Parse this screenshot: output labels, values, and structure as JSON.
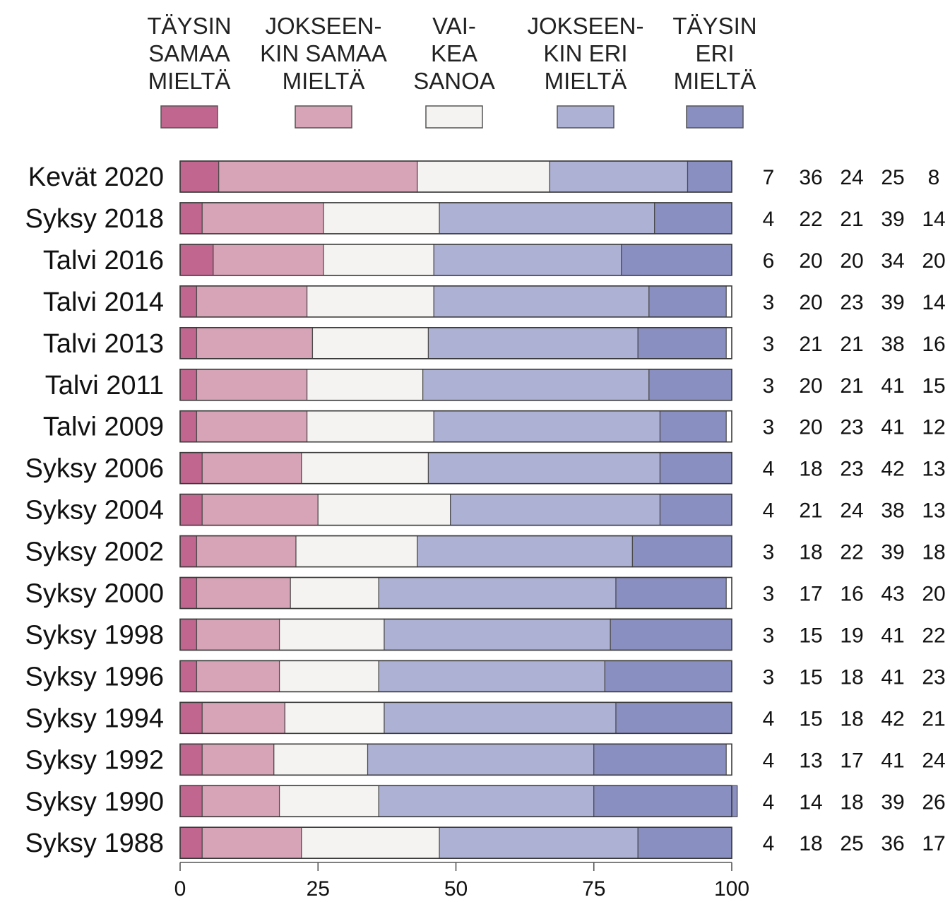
{
  "chart_data": {
    "type": "bar",
    "orientation": "horizontal",
    "stacked": true,
    "categories": [
      "Kevät 2020",
      "Syksy 2018",
      "Talvi 2016",
      "Talvi 2014",
      "Talvi 2013",
      "Talvi 2011",
      "Talvi 2009",
      "Syksy 2006",
      "Syksy 2004",
      "Syksy 2002",
      "Syksy 2000",
      "Syksy 1998",
      "Syksy 1996",
      "Syksy 1994",
      "Syksy 1992",
      "Syksy 1990",
      "Syksy 1988"
    ],
    "series": [
      {
        "name": "TÄYSIN SAMAA MIELTÄ",
        "legend_lines": [
          "TÄYSIN",
          "SAMAA",
          "MIELTÄ"
        ],
        "color": "#c0668f",
        "values": [
          7,
          4,
          6,
          3,
          3,
          3,
          3,
          4,
          4,
          3,
          3,
          3,
          3,
          4,
          4,
          4,
          4
        ]
      },
      {
        "name": "JOKSEEN-KIN SAMAA MIELTÄ",
        "legend_lines": [
          "JOKSEEN-",
          "KIN SAMAA",
          "MIELTÄ"
        ],
        "color": "#d7a3b6",
        "values": [
          36,
          22,
          20,
          20,
          21,
          20,
          20,
          18,
          21,
          18,
          17,
          15,
          15,
          15,
          13,
          14,
          18
        ]
      },
      {
        "name": "VAI-KEA SANOA",
        "legend_lines": [
          "VAI-",
          "KEA",
          "SANOA"
        ],
        "color": "#f4f3f1",
        "values": [
          24,
          21,
          20,
          23,
          21,
          21,
          23,
          23,
          24,
          22,
          16,
          19,
          18,
          18,
          17,
          18,
          25
        ]
      },
      {
        "name": "JOKSEEN-KIN ERI MIELTÄ",
        "legend_lines": [
          "JOKSEEN-",
          "KIN ERI",
          "MIELTÄ"
        ],
        "color": "#adb1d3",
        "values": [
          25,
          39,
          34,
          39,
          38,
          41,
          41,
          42,
          38,
          39,
          43,
          41,
          41,
          42,
          41,
          39,
          36
        ]
      },
      {
        "name": "TÄYSIN ERI MIELTÄ",
        "legend_lines": [
          "TÄYSIN",
          "ERI",
          "MIELTÄ"
        ],
        "color": "#8a8fc1",
        "values": [
          8,
          14,
          20,
          14,
          16,
          15,
          12,
          13,
          13,
          18,
          20,
          22,
          23,
          21,
          24,
          26,
          17
        ]
      }
    ],
    "xlim": [
      0,
      100
    ],
    "xticks": [
      "0",
      "25",
      "50",
      "75",
      "100"
    ],
    "legend": "top",
    "grid": false,
    "value_columns": "right"
  }
}
